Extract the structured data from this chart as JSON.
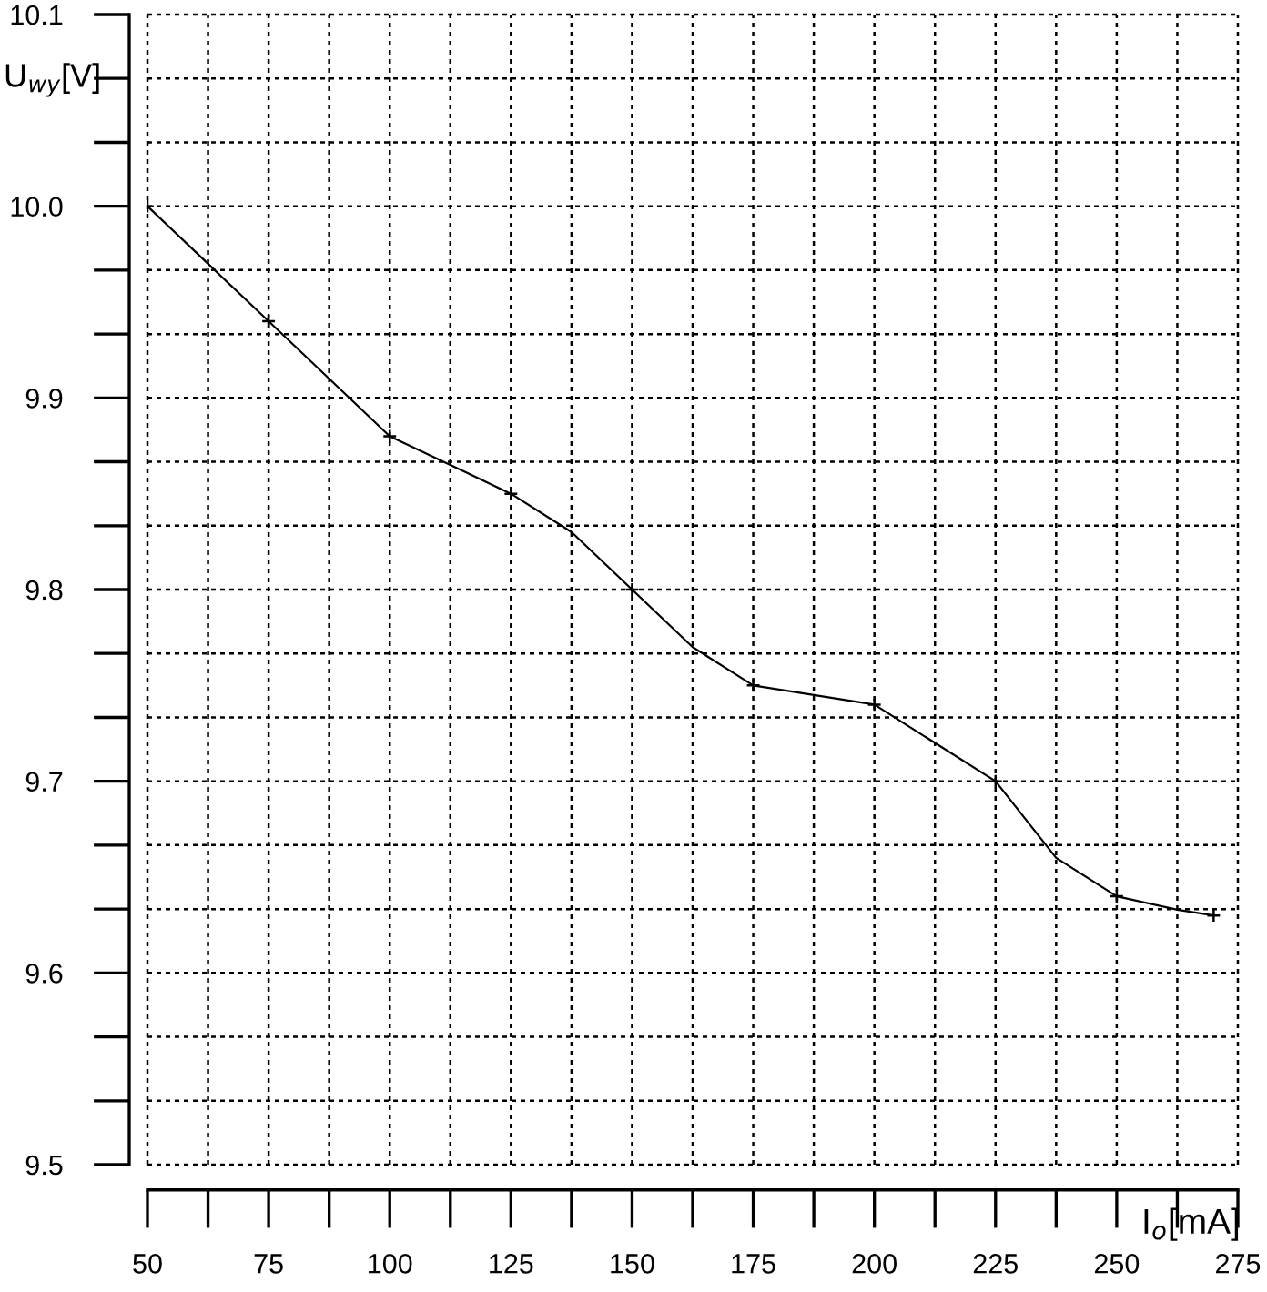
{
  "chart_data": {
    "type": "line",
    "xlabel": "I$_{o}$[mA]",
    "ylabel": "U$_{wy}$[V]",
    "series": [
      {
        "color": "#000000",
        "marker": "none",
        "x": [
          50,
          62.5,
          75,
          87.5,
          100,
          112.5,
          125,
          137.5,
          150,
          162.5,
          175,
          187.5,
          200,
          212.5,
          225,
          237.5,
          250,
          262.5,
          270
        ],
        "values": [
          10.0,
          9.97,
          9.94,
          9.91,
          9.88,
          9.865,
          9.85,
          9.83,
          9.8,
          9.77,
          9.75,
          9.745,
          9.74,
          9.72,
          9.7,
          9.66,
          9.64,
          9.633,
          9.63
        ]
      },
      {
        "type": "scatter",
        "color": "#000000",
        "marker": "cross",
        "x": [
          50,
          75,
          100,
          125,
          150,
          175,
          200,
          225,
          250,
          270
        ],
        "values": [
          10.0,
          9.94,
          9.88,
          9.85,
          9.8,
          9.75,
          9.74,
          9.7,
          9.64,
          9.63
        ]
      }
    ],
    "xlim": [
      50,
      275
    ],
    "xticks": [
      50,
      {
        "value": 62.5,
        "label": null
      },
      75,
      {
        "value": 87.5,
        "label": null
      },
      100,
      {
        "value": 112.5,
        "label": null
      },
      125,
      {
        "value": 137.5,
        "label": null
      },
      150,
      {
        "value": 162.5,
        "label": null
      },
      175,
      {
        "value": 187.5,
        "label": null
      },
      200,
      {
        "value": 212.5,
        "label": null
      },
      225,
      {
        "value": 237.5,
        "label": null
      },
      250,
      {
        "value": 262.5,
        "label": null
      },
      275
    ],
    "ylim": [
      9.5,
      10.1
    ],
    "yticks": [
      9.5,
      {
        "value": 9.5333,
        "label": null
      },
      {
        "value": 9.5667,
        "label": null
      },
      9.6,
      {
        "value": 9.6333,
        "label": null
      },
      {
        "value": 9.6667,
        "label": null
      },
      9.7,
      {
        "value": 9.7333,
        "label": null
      },
      {
        "value": 9.7667,
        "label": null
      },
      9.8,
      {
        "value": 9.8333,
        "label": null
      },
      {
        "value": 9.8667,
        "label": null
      },
      9.9,
      {
        "value": 9.9333,
        "label": null
      },
      {
        "value": 9.9667,
        "label": null
      },
      {
        "value": 10,
        "label": "10.0"
      },
      {
        "value": 10.0333,
        "label": null
      },
      {
        "value": 10.0667,
        "label": null
      },
      10.1
    ],
    "grid": true,
    "line_style": "solid"
  }
}
